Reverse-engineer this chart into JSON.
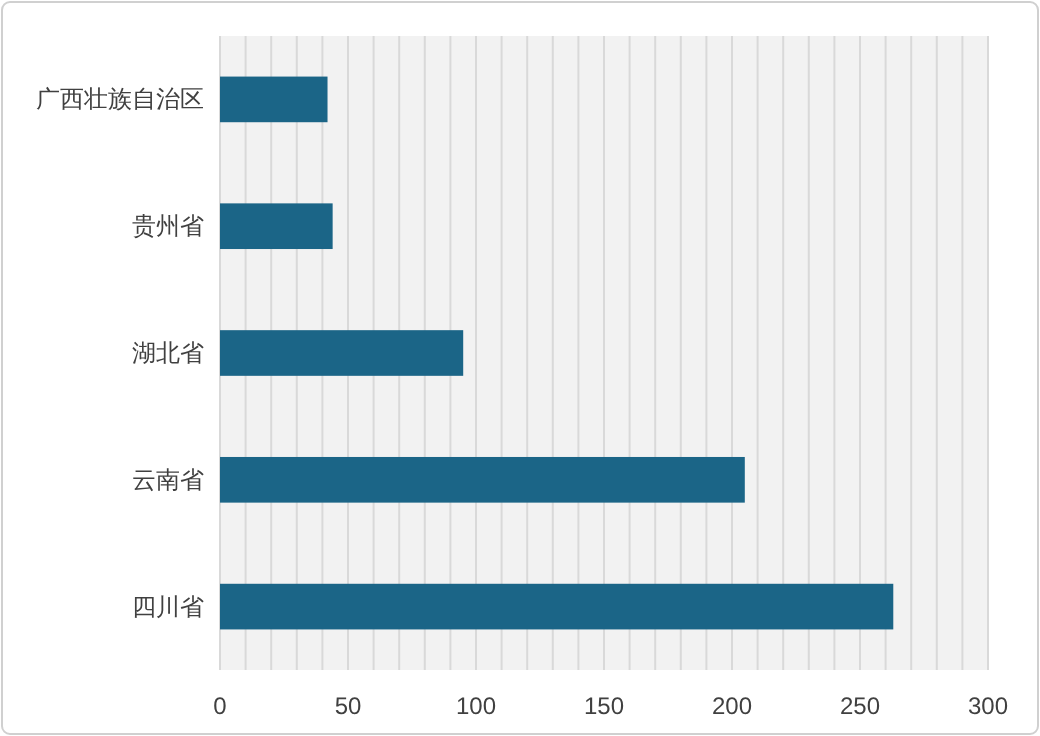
{
  "chart_data": {
    "type": "bar",
    "orientation": "horizontal",
    "categories": [
      "广西壮族自治区",
      "贵州省",
      "湖北省",
      "云南省",
      "四川省"
    ],
    "values": [
      42,
      44,
      95,
      205,
      263
    ],
    "color": "#1b6587",
    "xlim": [
      0,
      300
    ],
    "xticks": [
      0,
      {
        "value": 10,
        "label": null
      },
      {
        "value": 20,
        "label": null
      },
      {
        "value": 30,
        "label": null
      },
      {
        "value": 40,
        "label": null
      },
      50,
      {
        "value": 60,
        "label": null
      },
      {
        "value": 70,
        "label": null
      },
      {
        "value": 80,
        "label": null
      },
      {
        "value": 90,
        "label": null
      },
      100,
      {
        "value": 110,
        "label": null
      },
      {
        "value": 120,
        "label": null
      },
      {
        "value": 130,
        "label": null
      },
      {
        "value": 140,
        "label": null
      },
      150,
      {
        "value": 160,
        "label": null
      },
      {
        "value": 170,
        "label": null
      },
      {
        "value": 180,
        "label": null
      },
      {
        "value": 190,
        "label": null
      },
      200,
      {
        "value": 210,
        "label": null
      },
      {
        "value": 220,
        "label": null
      },
      {
        "value": 230,
        "label": null
      },
      {
        "value": 240,
        "label": null
      },
      250,
      {
        "value": 260,
        "label": null
      },
      {
        "value": 270,
        "label": null
      },
      {
        "value": 280,
        "label": null
      },
      {
        "value": 290,
        "label": null
      },
      300
    ],
    "grid": "x"
  }
}
